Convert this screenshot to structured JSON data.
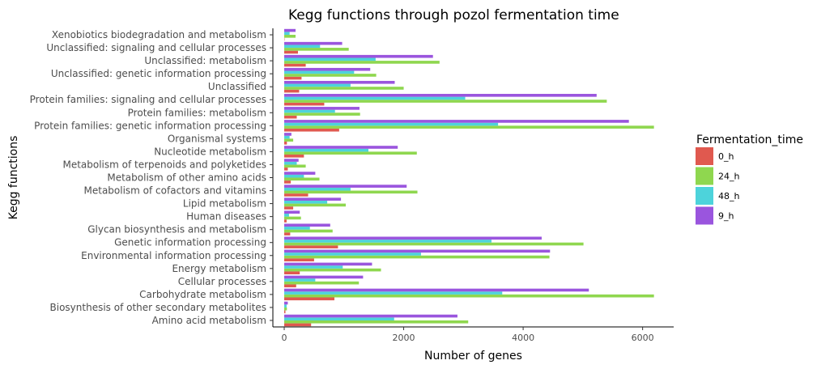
{
  "chart_data": {
    "type": "bar",
    "orientation": "horizontal",
    "title": "Kegg functions through pozol fermentation time",
    "xlabel": "Number of genes",
    "ylabel": "Kegg functions",
    "xlim": [
      -190,
      6520
    ],
    "xticks": [
      0,
      2000,
      4000,
      6000
    ],
    "xtick_labels": [
      "0",
      "2000",
      "4000",
      "6000"
    ],
    "grid": false,
    "legend": {
      "title": "Fermentation_time",
      "placement": "right",
      "entries": [
        "0_h",
        "24_h",
        "48_h",
        "9_h"
      ]
    },
    "categories": [
      "Amino acid metabolism",
      "Biosynthesis of other secondary metabolites",
      "Carbohydrate metabolism",
      "Cellular processes",
      "Energy metabolism",
      "Environmental information processing",
      "Genetic information processing",
      "Glycan biosynthesis and metabolism",
      "Human diseases",
      "Lipid metabolism",
      "Metabolism of cofactors and vitamins",
      "Metabolism of other amino acids",
      "Metabolism of terpenoids and polyketides",
      "Nucleotide metabolism",
      "Organismal systems",
      "Protein families: genetic information processing",
      "Protein families: metabolism",
      "Protein families: signaling and cellular processes",
      "Unclassified",
      "Unclassified: genetic information processing",
      "Unclassified: metabolism",
      "Unclassified: signaling and cellular processes",
      "Xenobiotics biodegradation and metabolism"
    ],
    "series": [
      {
        "name": "0_h",
        "color": "#e0594f",
        "values": [
          450,
          20,
          840,
          200,
          260,
          500,
          900,
          100,
          40,
          150,
          400,
          110,
          60,
          330,
          45,
          920,
          210,
          670,
          250,
          290,
          360,
          230,
          5
        ]
      },
      {
        "name": "24_h",
        "color": "#8fd74f",
        "values": [
          3080,
          45,
          6190,
          1250,
          1620,
          4440,
          5010,
          810,
          280,
          1030,
          2230,
          590,
          360,
          2220,
          150,
          6190,
          1270,
          5400,
          2000,
          1540,
          2600,
          1080,
          190
        ]
      },
      {
        "name": "48_h",
        "color": "#4dd3db",
        "values": [
          1840,
          40,
          3650,
          520,
          980,
          2290,
          3470,
          430,
          80,
          720,
          1110,
          330,
          210,
          1410,
          90,
          3580,
          850,
          3030,
          1110,
          1170,
          1530,
          600,
          90
        ]
      },
      {
        "name": "9_h",
        "color": "#9a55de",
        "values": [
          2900,
          60,
          5100,
          1320,
          1470,
          4450,
          4310,
          770,
          260,
          950,
          2050,
          520,
          240,
          1900,
          120,
          5770,
          1260,
          5230,
          1850,
          1440,
          2490,
          970,
          190
        ]
      }
    ]
  }
}
